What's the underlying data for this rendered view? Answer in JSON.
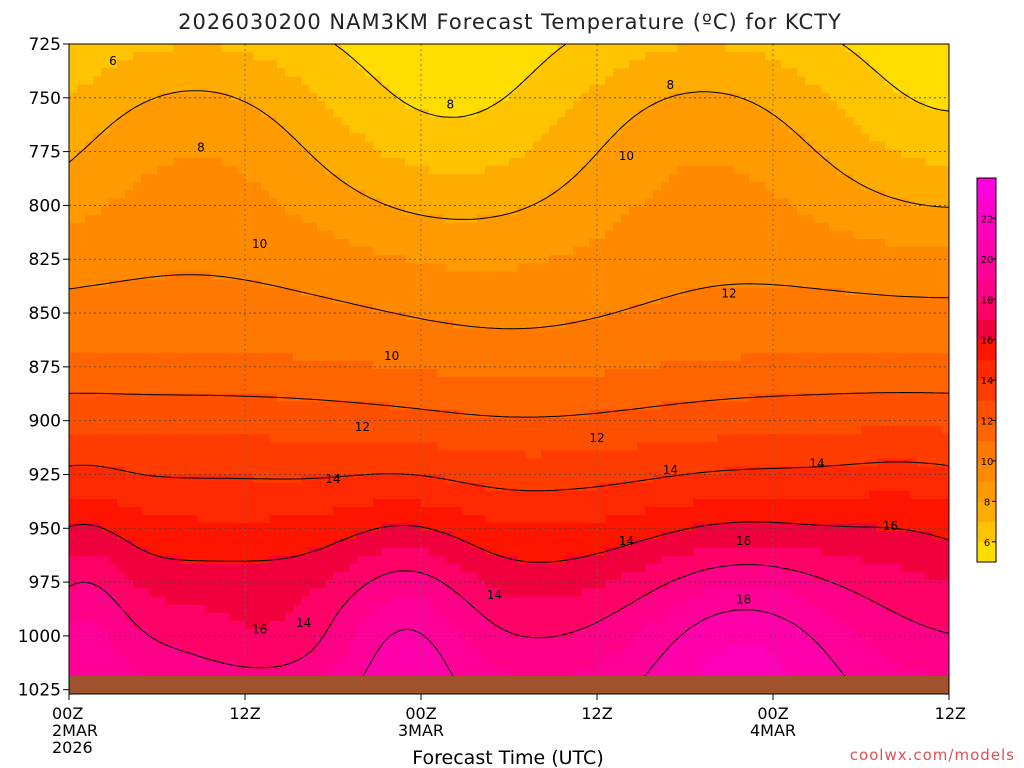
{
  "chart_data": {
    "type": "heatmap",
    "title": "2026030200 NAM3KM Forecast Temperature (ºC) for KCTY",
    "xlabel": "Forecast Time (UTC)",
    "credit": "coolwx.com/models",
    "x_ticks": [
      {
        "hour": 0,
        "lines": [
          "00Z",
          "2MAR",
          "2026"
        ]
      },
      {
        "hour": 12,
        "lines": [
          "12Z"
        ]
      },
      {
        "hour": 24,
        "lines": [
          "00Z",
          "3MAR"
        ]
      },
      {
        "hour": 36,
        "lines": [
          "12Z"
        ]
      },
      {
        "hour": 48,
        "lines": [
          "00Z",
          "4MAR"
        ]
      },
      {
        "hour": 60,
        "lines": [
          "12Z"
        ]
      }
    ],
    "xlim": [
      0,
      60
    ],
    "y_ticks": [
      725,
      750,
      775,
      800,
      825,
      850,
      875,
      900,
      925,
      950,
      975,
      1000,
      1025
    ],
    "ylim": [
      1027,
      725
    ],
    "colorbar": {
      "ticks": [
        6,
        8,
        10,
        12,
        14,
        16,
        18,
        20,
        22
      ],
      "levels": [
        5,
        6,
        7,
        8,
        9,
        10,
        11,
        12,
        13,
        14,
        15,
        16,
        17,
        18,
        19,
        20,
        21,
        22,
        23,
        24
      ],
      "colors": [
        "#ffdd00",
        "#ffc400",
        "#ffac00",
        "#ff9a00",
        "#ff8a00",
        "#ff7800",
        "#ff6400",
        "#ff5000",
        "#ff3c00",
        "#ff2800",
        "#ff1400",
        "#f0003c",
        "#ff0066",
        "#ff0088",
        "#ff0099",
        "#ff00aa",
        "#ff00bb",
        "#ff00cc",
        "#ff00dd"
      ]
    },
    "contour_labels": [
      {
        "value": 6,
        "hour": 3,
        "pressure": 733
      },
      {
        "value": 8,
        "hour": 9,
        "pressure": 773
      },
      {
        "value": 8,
        "hour": 26,
        "pressure": 753
      },
      {
        "value": 8,
        "hour": 41,
        "pressure": 744
      },
      {
        "value": 10,
        "hour": 13,
        "pressure": 818
      },
      {
        "value": 10,
        "hour": 22,
        "pressure": 870
      },
      {
        "value": 10,
        "hour": 38,
        "pressure": 777
      },
      {
        "value": 12,
        "hour": 20,
        "pressure": 903
      },
      {
        "value": 12,
        "hour": 36,
        "pressure": 908
      },
      {
        "value": 12,
        "hour": 45,
        "pressure": 841
      },
      {
        "value": 14,
        "hour": 18,
        "pressure": 927
      },
      {
        "value": 14,
        "hour": 29,
        "pressure": 981
      },
      {
        "value": 14,
        "hour": 38,
        "pressure": 956
      },
      {
        "value": 14,
        "hour": 41,
        "pressure": 923
      },
      {
        "value": 14,
        "hour": 51,
        "pressure": 920
      },
      {
        "value": 14,
        "hour": 16,
        "pressure": 994
      },
      {
        "value": 16,
        "hour": 13,
        "pressure": 997
      },
      {
        "value": 16,
        "hour": 46,
        "pressure": 956
      },
      {
        "value": 16,
        "hour": 56,
        "pressure": 949
      },
      {
        "value": 18,
        "hour": 46,
        "pressure": 983
      }
    ],
    "grid": true,
    "surface_band": "brown"
  }
}
